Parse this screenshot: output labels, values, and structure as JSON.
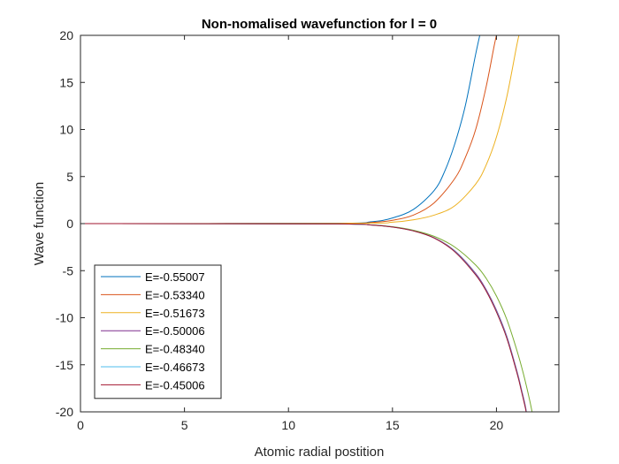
{
  "chart_data": {
    "type": "line",
    "title": "Non-nomalised wavefunction for l = 0",
    "xlabel": "Atomic radial postition",
    "ylabel": "Wave function",
    "xlim": [
      0,
      23
    ],
    "ylim": [
      -20,
      20
    ],
    "xticks": [
      0,
      5,
      10,
      15,
      20
    ],
    "yticks": [
      -20,
      -15,
      -10,
      -5,
      0,
      5,
      10,
      15,
      20
    ],
    "grid": false,
    "legend_position": "bottom-left",
    "series": [
      {
        "name": "E=-0.55007",
        "color": "#0072BD",
        "x": [
          0,
          12,
          14,
          15,
          16,
          17,
          17.5,
          18,
          18.5,
          19,
          19.3
        ],
        "y": [
          0,
          0.03,
          0.2,
          0.6,
          1.5,
          3.5,
          5.5,
          8.5,
          12.5,
          18,
          21
        ]
      },
      {
        "name": "E=-0.53340",
        "color": "#D95319",
        "x": [
          0,
          12,
          14,
          15,
          16,
          17,
          18,
          18.5,
          19,
          19.5,
          19.9,
          20.1
        ],
        "y": [
          0,
          0.02,
          0.12,
          0.35,
          0.9,
          2.2,
          4.8,
          7,
          10,
          14.5,
          19,
          21
        ]
      },
      {
        "name": "E=-0.51673",
        "color": "#EDB120",
        "x": [
          0,
          13,
          15,
          16,
          17,
          18,
          19,
          19.5,
          20,
          20.5,
          21,
          21.2
        ],
        "y": [
          0,
          0.03,
          0.15,
          0.4,
          0.9,
          1.9,
          4.2,
          6.2,
          9.2,
          13.5,
          19.2,
          21
        ]
      },
      {
        "name": "E=-0.50006",
        "color": "#7E2F8E",
        "x": [
          0,
          12,
          14,
          15,
          16,
          17,
          18,
          19,
          19.5,
          20,
          20.5,
          21,
          21.2,
          21.4,
          21.5
        ],
        "y": [
          0,
          -0.03,
          -0.15,
          -0.35,
          -0.75,
          -1.5,
          -2.9,
          -5.3,
          -7,
          -9.2,
          -12,
          -15.8,
          -17.6,
          -19.5,
          -21
        ]
      },
      {
        "name": "E=-0.48340",
        "color": "#77AC30",
        "x": [
          0,
          12,
          14,
          15,
          16,
          17,
          18,
          19,
          19.5,
          20,
          20.5,
          21,
          21.3,
          21.6,
          21.8
        ],
        "y": [
          0,
          -0.03,
          -0.14,
          -0.33,
          -0.7,
          -1.35,
          -2.5,
          -4.4,
          -5.8,
          -7.7,
          -10.2,
          -13.6,
          -16,
          -18.8,
          -21
        ]
      },
      {
        "name": "E=-0.46673",
        "color": "#4DBEEE",
        "x": [
          0,
          12,
          14,
          15,
          16,
          17,
          18,
          19,
          19.5,
          20,
          20.5,
          21,
          21.2,
          21.4,
          21.5
        ],
        "y": [
          0,
          -0.03,
          -0.15,
          -0.36,
          -0.76,
          -1.52,
          -2.95,
          -5.4,
          -7.1,
          -9.3,
          -12.1,
          -15.9,
          -17.7,
          -19.6,
          -21
        ]
      },
      {
        "name": "E=-0.45006",
        "color": "#A2142F",
        "x": [
          0,
          12,
          14,
          15,
          16,
          17,
          18,
          19,
          19.5,
          20,
          20.5,
          21,
          21.2,
          21.4,
          21.5
        ],
        "y": [
          0,
          -0.03,
          -0.15,
          -0.36,
          -0.77,
          -1.53,
          -3.0,
          -5.45,
          -7.15,
          -9.4,
          -12.2,
          -16,
          -17.8,
          -19.7,
          -21
        ]
      }
    ]
  }
}
